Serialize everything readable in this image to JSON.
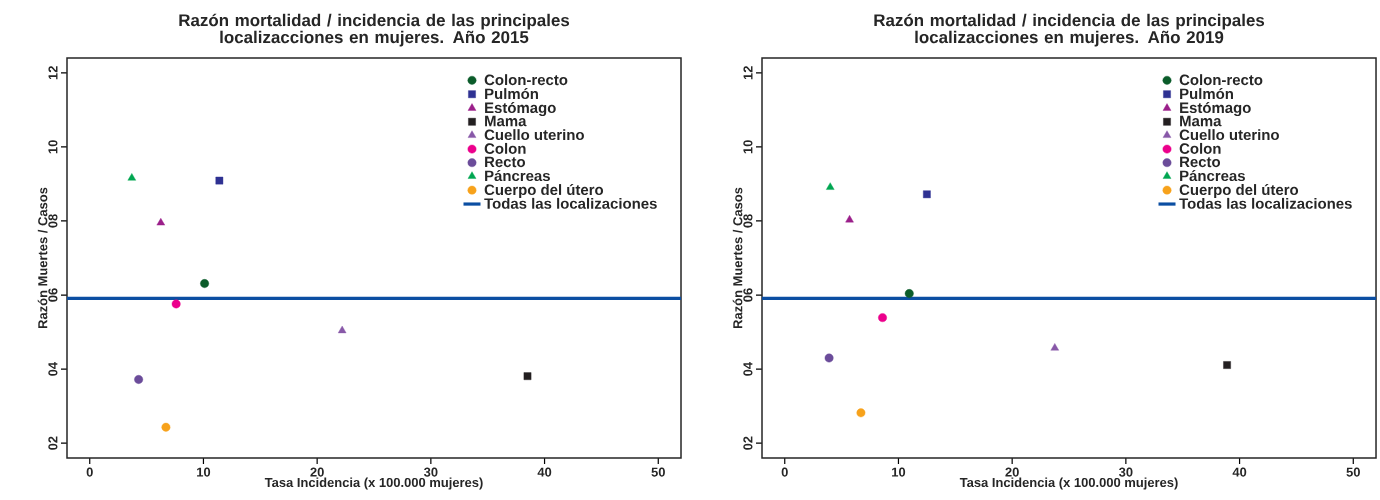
{
  "chart_data": [
    {
      "type": "scatter",
      "title": "Razón mortalidad / incidencia de las principales localizacciones en mujeres. Año 2015",
      "xlabel": "Tasa Incidencia (x 100.000 mujeres)",
      "ylabel": "Razón Muertes / Casos",
      "xlim": [
        -2,
        52
      ],
      "ylim": [
        1.6,
        12.4
      ],
      "xticks": [
        0,
        10,
        20,
        30,
        40,
        50
      ],
      "yticks": [
        {
          "value": 2,
          "label": "02"
        },
        {
          "value": 4,
          "label": "04"
        },
        {
          "value": 6,
          "label": "06"
        },
        {
          "value": 8,
          "label": "08"
        },
        10,
        12
      ],
      "legend": "top right",
      "series": [
        {
          "name": "Colon-recto",
          "color": "#0b5c2a",
          "marker": "circle",
          "x": [
            10.1
          ],
          "values": [
            6.31
          ]
        },
        {
          "name": "Pulmón",
          "color": "#2e3192",
          "marker": "square",
          "x": [
            11.4
          ],
          "values": [
            9.09
          ]
        },
        {
          "name": "Estómago",
          "color": "#9b1f8a",
          "marker": "triangle",
          "x": [
            6.25
          ],
          "values": [
            7.95
          ]
        },
        {
          "name": "Mama",
          "color": "#231f20",
          "marker": "square",
          "x": [
            38.5
          ],
          "values": [
            3.81
          ]
        },
        {
          "name": "Cuello uterino",
          "color": "#8858a8",
          "marker": "triangle",
          "x": [
            22.2
          ],
          "values": [
            5.04
          ]
        },
        {
          "name": "Colon",
          "color": "#ec008c",
          "marker": "circle",
          "x": [
            7.6
          ],
          "values": [
            5.76
          ]
        },
        {
          "name": "Recto",
          "color": "#6b4c9a",
          "marker": "circle",
          "x": [
            4.3
          ],
          "values": [
            3.72
          ]
        },
        {
          "name": "Páncreas",
          "color": "#00a651",
          "marker": "triangle",
          "x": [
            3.7
          ],
          "values": [
            9.16
          ]
        },
        {
          "name": "Cuerpo del útero",
          "color": "#f7a21b",
          "marker": "circle",
          "x": [
            6.7
          ],
          "values": [
            2.43
          ]
        }
      ],
      "ref_lines": [
        {
          "axis": "y",
          "value": 5.91,
          "label": "Todas las localizaciones",
          "color": "#0b4ea2"
        }
      ]
    },
    {
      "type": "scatter",
      "title": "Razón mortalidad / incidencia de las principales localizacciones en mujeres. Año 2019",
      "xlabel": "Tasa Incidencia (x 100.000 mujeres)",
      "ylabel": "Razón Muertes / Casos",
      "xlim": [
        -2,
        52
      ],
      "ylim": [
        1.6,
        12.4
      ],
      "xticks": [
        0,
        10,
        20,
        30,
        40,
        50
      ],
      "yticks": [
        {
          "value": 2,
          "label": "02"
        },
        {
          "value": 4,
          "label": "04"
        },
        {
          "value": 6,
          "label": "06"
        },
        {
          "value": 8,
          "label": "08"
        },
        10,
        12
      ],
      "legend": "top right",
      "series": [
        {
          "name": "Colon-recto",
          "color": "#0b5c2a",
          "marker": "circle",
          "x": [
            10.95
          ],
          "values": [
            6.04
          ]
        },
        {
          "name": "Pulmón",
          "color": "#2e3192",
          "marker": "square",
          "x": [
            12.5
          ],
          "values": [
            8.72
          ]
        },
        {
          "name": "Estómago",
          "color": "#9b1f8a",
          "marker": "triangle",
          "x": [
            5.7
          ],
          "values": [
            8.03
          ]
        },
        {
          "name": "Mama",
          "color": "#231f20",
          "marker": "square",
          "x": [
            38.9
          ],
          "values": [
            4.11
          ]
        },
        {
          "name": "Cuello uterino",
          "color": "#8858a8",
          "marker": "triangle",
          "x": [
            23.75
          ],
          "values": [
            4.57
          ]
        },
        {
          "name": "Colon",
          "color": "#ec008c",
          "marker": "circle",
          "x": [
            8.6
          ],
          "values": [
            5.39
          ]
        },
        {
          "name": "Recto",
          "color": "#6b4c9a",
          "marker": "circle",
          "x": [
            3.9
          ],
          "values": [
            4.3
          ]
        },
        {
          "name": "Páncreas",
          "color": "#00a651",
          "marker": "triangle",
          "x": [
            4.0
          ],
          "values": [
            8.91
          ]
        },
        {
          "name": "Cuerpo del útero",
          "color": "#f7a21b",
          "marker": "circle",
          "x": [
            6.7
          ],
          "values": [
            2.82
          ]
        }
      ],
      "ref_lines": [
        {
          "axis": "y",
          "value": 5.91,
          "label": "Todas las localizaciones",
          "color": "#0b4ea2"
        }
      ]
    }
  ]
}
